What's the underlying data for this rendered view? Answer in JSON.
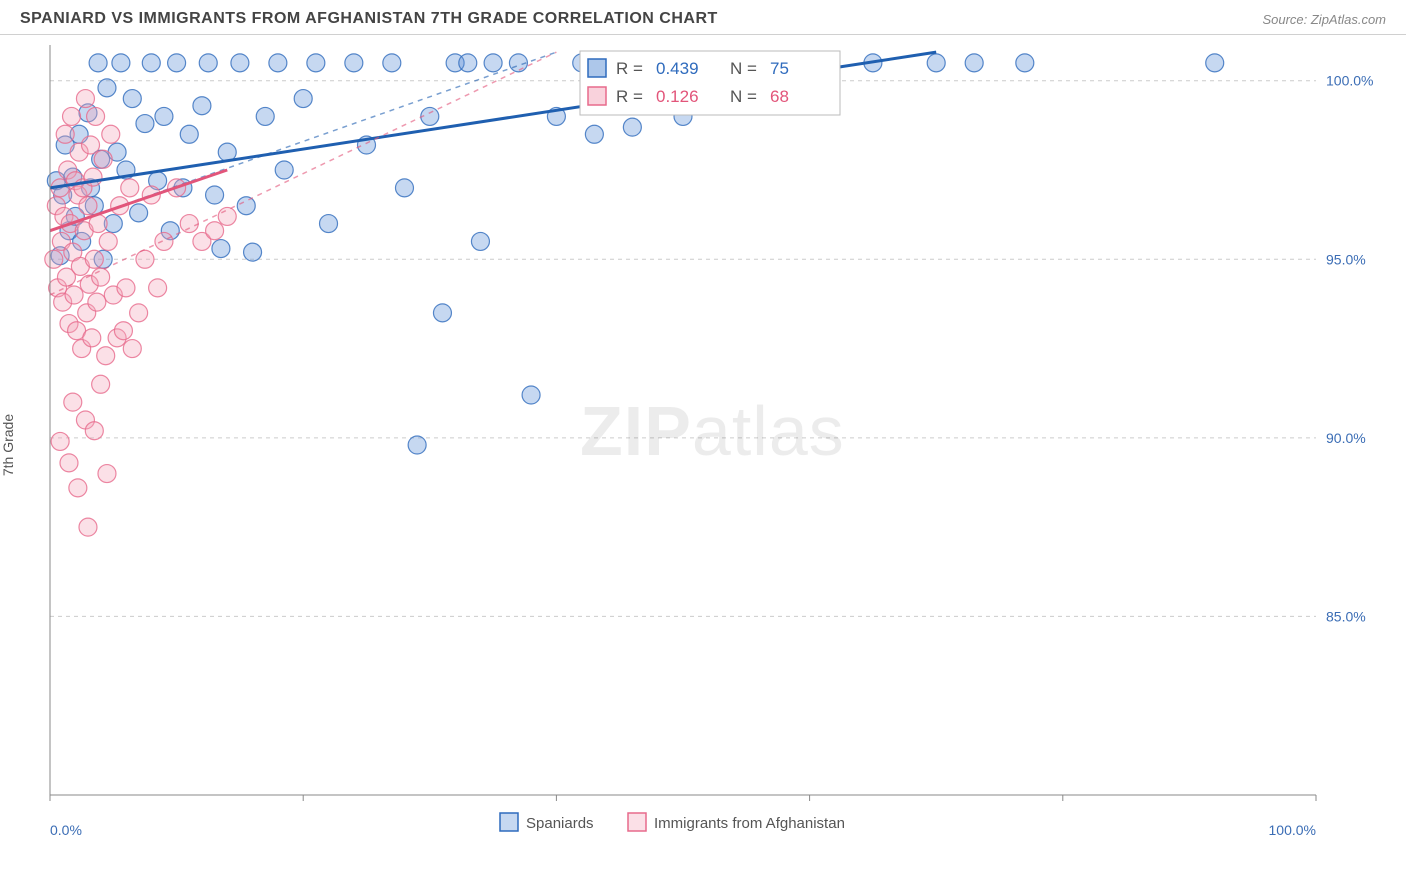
{
  "title": "SPANIARD VS IMMIGRANTS FROM AFGHANISTAN 7TH GRADE CORRELATION CHART",
  "source": "Source: ZipAtlas.com",
  "ylabel": "7th Grade",
  "watermark_bold": "ZIP",
  "watermark_rest": "atlas",
  "chart": {
    "type": "scatter",
    "background_color": "#ffffff",
    "grid_color": "#cccccc",
    "axis_color": "#888888",
    "tick_color": "#3b6db5",
    "xlim": [
      0,
      100
    ],
    "ylim": [
      80,
      101
    ],
    "xticks": [
      0,
      20,
      40,
      60,
      80,
      100
    ],
    "xtick_labels": [
      "0.0%",
      "",
      "",
      "",
      "",
      "100.0%"
    ],
    "yticks": [
      85,
      90,
      95,
      100
    ],
    "ytick_labels": [
      "85.0%",
      "90.0%",
      "95.0%",
      "100.0%"
    ],
    "marker_radius": 9,
    "marker_opacity": 0.35,
    "marker_stroke_opacity": 0.8,
    "trend_line_width": 3,
    "trend_dash_width": 1.5,
    "series": [
      {
        "name": "Spaniards",
        "color": "#5b8fd6",
        "stroke": "#2f6bbd",
        "trend_color": "#1f5fb0",
        "R": "0.439",
        "N": "75",
        "trend": {
          "x1": 0,
          "y1": 97.0,
          "x2": 70,
          "y2": 100.8
        },
        "trend_dash": {
          "x1": 0,
          "y1": 95.8,
          "x2": 40,
          "y2": 100.8
        },
        "points": [
          [
            0.5,
            97.2
          ],
          [
            0.8,
            95.1
          ],
          [
            1.0,
            96.8
          ],
          [
            1.2,
            98.2
          ],
          [
            1.5,
            95.8
          ],
          [
            1.8,
            97.3
          ],
          [
            2.0,
            96.2
          ],
          [
            2.3,
            98.5
          ],
          [
            2.5,
            95.5
          ],
          [
            3.0,
            99.1
          ],
          [
            3.2,
            97.0
          ],
          [
            3.5,
            96.5
          ],
          [
            3.8,
            100.5
          ],
          [
            4.0,
            97.8
          ],
          [
            4.2,
            95.0
          ],
          [
            4.5,
            99.8
          ],
          [
            5.0,
            96.0
          ],
          [
            5.3,
            98.0
          ],
          [
            5.6,
            100.5
          ],
          [
            6.0,
            97.5
          ],
          [
            6.5,
            99.5
          ],
          [
            7.0,
            96.3
          ],
          [
            7.5,
            98.8
          ],
          [
            8.0,
            100.5
          ],
          [
            8.5,
            97.2
          ],
          [
            9.0,
            99.0
          ],
          [
            9.5,
            95.8
          ],
          [
            10.0,
            100.5
          ],
          [
            10.5,
            97.0
          ],
          [
            11.0,
            98.5
          ],
          [
            12.0,
            99.3
          ],
          [
            12.5,
            100.5
          ],
          [
            13.0,
            96.8
          ],
          [
            13.5,
            95.3
          ],
          [
            14.0,
            98.0
          ],
          [
            15.0,
            100.5
          ],
          [
            15.5,
            96.5
          ],
          [
            16.0,
            95.2
          ],
          [
            17.0,
            99.0
          ],
          [
            18.0,
            100.5
          ],
          [
            18.5,
            97.5
          ],
          [
            20.0,
            99.5
          ],
          [
            21.0,
            100.5
          ],
          [
            22.0,
            96.0
          ],
          [
            24.0,
            100.5
          ],
          [
            25.0,
            98.2
          ],
          [
            27.0,
            100.5
          ],
          [
            28.0,
            97.0
          ],
          [
            29.0,
            89.8
          ],
          [
            30.0,
            99.0
          ],
          [
            31.0,
            93.5
          ],
          [
            32.0,
            100.5
          ],
          [
            33.0,
            100.5
          ],
          [
            34.0,
            95.5
          ],
          [
            35.0,
            100.5
          ],
          [
            37.0,
            100.5
          ],
          [
            38.0,
            91.2
          ],
          [
            40.0,
            99.0
          ],
          [
            42.0,
            100.5
          ],
          [
            43.0,
            98.5
          ],
          [
            45.0,
            99.3
          ],
          [
            46.0,
            98.7
          ],
          [
            48.0,
            100.5
          ],
          [
            50.0,
            99.0
          ],
          [
            55.0,
            100.5
          ],
          [
            58.0,
            100.5
          ],
          [
            60.0,
            100.5
          ],
          [
            65.0,
            100.5
          ],
          [
            70.0,
            100.5
          ],
          [
            73.0,
            100.5
          ],
          [
            77.0,
            100.5
          ],
          [
            92.0,
            100.5
          ]
        ]
      },
      {
        "name": "Immigrants from Afghanistan",
        "color": "#f4a6ba",
        "stroke": "#e76a8c",
        "trend_color": "#e2557a",
        "R": "0.126",
        "N": "68",
        "trend": {
          "x1": 0,
          "y1": 95.8,
          "x2": 14,
          "y2": 97.5
        },
        "trend_dash": {
          "x1": 0,
          "y1": 94.0,
          "x2": 40,
          "y2": 100.8
        },
        "points": [
          [
            0.3,
            95.0
          ],
          [
            0.5,
            96.5
          ],
          [
            0.6,
            94.2
          ],
          [
            0.8,
            97.0
          ],
          [
            0.9,
            95.5
          ],
          [
            1.0,
            93.8
          ],
          [
            1.1,
            96.2
          ],
          [
            1.2,
            98.5
          ],
          [
            1.3,
            94.5
          ],
          [
            1.4,
            97.5
          ],
          [
            1.5,
            93.2
          ],
          [
            1.6,
            96.0
          ],
          [
            1.7,
            99.0
          ],
          [
            1.8,
            95.2
          ],
          [
            1.9,
            94.0
          ],
          [
            2.0,
            97.2
          ],
          [
            2.1,
            93.0
          ],
          [
            2.2,
            96.8
          ],
          [
            2.3,
            98.0
          ],
          [
            2.4,
            94.8
          ],
          [
            2.5,
            92.5
          ],
          [
            2.6,
            97.0
          ],
          [
            2.7,
            95.8
          ],
          [
            2.8,
            99.5
          ],
          [
            2.9,
            93.5
          ],
          [
            3.0,
            96.5
          ],
          [
            3.1,
            94.3
          ],
          [
            3.2,
            98.2
          ],
          [
            3.3,
            92.8
          ],
          [
            3.4,
            97.3
          ],
          [
            3.5,
            95.0
          ],
          [
            3.6,
            99.0
          ],
          [
            3.7,
            93.8
          ],
          [
            3.8,
            96.0
          ],
          [
            4.0,
            94.5
          ],
          [
            4.2,
            97.8
          ],
          [
            4.4,
            92.3
          ],
          [
            4.6,
            95.5
          ],
          [
            4.8,
            98.5
          ],
          [
            5.0,
            94.0
          ],
          [
            5.3,
            92.8
          ],
          [
            5.5,
            96.5
          ],
          [
            5.8,
            93.0
          ],
          [
            6.0,
            94.2
          ],
          [
            6.3,
            97.0
          ],
          [
            6.5,
            92.5
          ],
          [
            7.0,
            93.5
          ],
          [
            7.5,
            95.0
          ],
          [
            8.0,
            96.8
          ],
          [
            8.5,
            94.2
          ],
          [
            9.0,
            95.5
          ],
          [
            10.0,
            97.0
          ],
          [
            11.0,
            96.0
          ],
          [
            12.0,
            95.5
          ],
          [
            0.8,
            89.9
          ],
          [
            1.5,
            89.3
          ],
          [
            3.0,
            87.5
          ],
          [
            4.5,
            89.0
          ],
          [
            2.2,
            88.6
          ],
          [
            2.8,
            90.5
          ],
          [
            1.8,
            91.0
          ],
          [
            3.5,
            90.2
          ],
          [
            4.0,
            91.5
          ],
          [
            13.0,
            95.8
          ],
          [
            14.0,
            96.2
          ]
        ]
      }
    ],
    "legend": {
      "items": [
        {
          "label": "Spaniards",
          "color": "#5b8fd6",
          "stroke": "#2f6bbd"
        },
        {
          "label": "Immigrants from Afghanistan",
          "color": "#f4a6ba",
          "stroke": "#e76a8c"
        }
      ]
    },
    "corr_box": {
      "label_color": "#555555",
      "rows": [
        {
          "swatch_fill": "#5b8fd6",
          "swatch_stroke": "#2f6bbd",
          "r_label": "R =",
          "r_val": "0.439",
          "n_label": "N =",
          "n_val": "75",
          "val_color": "#2f6bbd"
        },
        {
          "swatch_fill": "#f4a6ba",
          "swatch_stroke": "#e76a8c",
          "r_label": "R =",
          "r_val": "0.126",
          "n_label": "N =",
          "n_val": "68",
          "val_color": "#e2557a"
        }
      ]
    }
  }
}
